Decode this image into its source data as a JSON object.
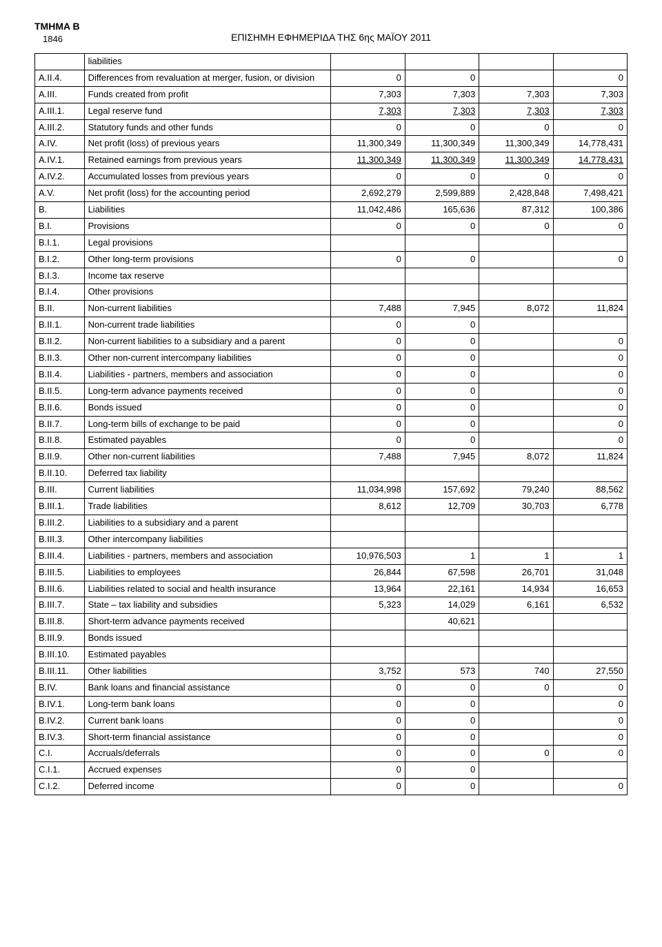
{
  "header": {
    "section_label": "TMHMA B",
    "page_number": "1846",
    "title": "ΕΠΙΣΗΜΗ ΕΦΗΜΕΡΙΔΑ ΤΗΣ 6ης ΜΑΪΟΥ 2011"
  },
  "table": {
    "columns": {
      "code_width": 60,
      "desc_width": 300,
      "val_width": 90
    },
    "rows": [
      {
        "code": "",
        "desc": "liabilities",
        "v": [
          "",
          "",
          "",
          ""
        ]
      },
      {
        "code": "A.II.4.",
        "desc": "Differences from revaluation at merger, fusion, or division",
        "v": [
          "0",
          "0",
          "",
          "0"
        ]
      },
      {
        "code": "A.III.",
        "desc": "Funds created from profit",
        "v": [
          "7,303",
          "7,303",
          "7,303",
          "7,303"
        ]
      },
      {
        "code": "A.III.1.",
        "desc": "Legal reserve fund",
        "v": [
          "7,303",
          "7,303",
          "7,303",
          "7,303"
        ],
        "underline": [
          true,
          true,
          true,
          true
        ]
      },
      {
        "code": "A.III.2.",
        "desc": "Statutory funds and other funds",
        "v": [
          "0",
          "0",
          "0",
          "0"
        ]
      },
      {
        "code": "A.IV.",
        "desc": "Net profit (loss) of previous years",
        "v": [
          "11,300,349",
          "11,300,349",
          "11,300,349",
          "14,778,431"
        ]
      },
      {
        "code": "A.IV.1.",
        "desc": "Retained earnings from previous years",
        "v": [
          "11,300,349",
          "11,300,349",
          "11,300,349",
          "14,778,431"
        ],
        "underline": [
          true,
          true,
          true,
          true
        ]
      },
      {
        "code": "A.IV.2.",
        "desc": "Accumulated losses from previous years",
        "v": [
          "0",
          "0",
          "0",
          "0"
        ]
      },
      {
        "code": "A.V.",
        "desc": "Net profit (loss) for the accounting period",
        "v": [
          "2,692,279",
          "2,599,889",
          "2,428,848",
          "7,498,421"
        ]
      },
      {
        "code": "B.",
        "desc": "Liabilities",
        "v": [
          "11,042,486",
          "165,636",
          "87,312",
          "100,386"
        ]
      },
      {
        "code": "B.I.",
        "desc": "Provisions",
        "v": [
          "0",
          "0",
          "0",
          "0"
        ]
      },
      {
        "code": "B.I.1.",
        "desc": "Legal provisions",
        "v": [
          "",
          "",
          "",
          ""
        ]
      },
      {
        "code": "B.I.2.",
        "desc": "Other long-term provisions",
        "v": [
          "0",
          "0",
          "",
          "0"
        ]
      },
      {
        "code": "B.I.3.",
        "desc": "Income tax reserve",
        "v": [
          "",
          "",
          "",
          ""
        ]
      },
      {
        "code": "B.I.4.",
        "desc": "Other provisions",
        "v": [
          "",
          "",
          "",
          ""
        ]
      },
      {
        "code": "B.II.",
        "desc": "Non-current liabilities",
        "v": [
          "7,488",
          "7,945",
          "8,072",
          "11,824"
        ]
      },
      {
        "code": "B.II.1.",
        "desc": "Non-current trade liabilities",
        "v": [
          "0",
          "0",
          "",
          ""
        ]
      },
      {
        "code": "B.II.2.",
        "desc": "Non-current liabilities to a subsidiary and a parent",
        "v": [
          "0",
          "0",
          "",
          "0"
        ]
      },
      {
        "code": "B.II.3.",
        "desc": "Other non-current intercompany liabilities",
        "v": [
          "0",
          "0",
          "",
          "0"
        ]
      },
      {
        "code": "B.II.4.",
        "desc": "Liabilities - partners, members and association",
        "v": [
          "0",
          "0",
          "",
          "0"
        ]
      },
      {
        "code": "B.II.5.",
        "desc": "Long-term advance payments received",
        "v": [
          "0",
          "0",
          "",
          "0"
        ]
      },
      {
        "code": "B.II.6.",
        "desc": "Bonds issued",
        "v": [
          "0",
          "0",
          "",
          "0"
        ]
      },
      {
        "code": "B.II.7.",
        "desc": "Long-term bills of exchange to be paid",
        "v": [
          "0",
          "0",
          "",
          "0"
        ]
      },
      {
        "code": "B.II.8.",
        "desc": "Estimated payables",
        "v": [
          "0",
          "0",
          "",
          "0"
        ]
      },
      {
        "code": "B.II.9.",
        "desc": "Other non-current liabilities",
        "v": [
          "7,488",
          "7,945",
          "8,072",
          "11,824"
        ]
      },
      {
        "code": "B.II.10.",
        "desc": "Deferred tax liability",
        "v": [
          "",
          "",
          "",
          ""
        ]
      },
      {
        "code": "B.III.",
        "desc": "Current liabilities",
        "v": [
          "11,034,998",
          "157,692",
          "79,240",
          "88,562"
        ]
      },
      {
        "code": "B.III.1.",
        "desc": "Trade liabilities",
        "v": [
          "8,612",
          "12,709",
          "30,703",
          "6,778"
        ]
      },
      {
        "code": "B.III.2.",
        "desc": "Liabilities to a subsidiary and a parent",
        "v": [
          "",
          "",
          "",
          ""
        ]
      },
      {
        "code": "B.III.3.",
        "desc": "Other intercompany liabilities",
        "v": [
          "",
          "",
          "",
          ""
        ]
      },
      {
        "code": "B.III.4.",
        "desc": "Liabilities - partners, members and association",
        "v": [
          "10,976,503",
          "1",
          "1",
          "1"
        ]
      },
      {
        "code": "B.III.5.",
        "desc": "Liabilities to employees",
        "v": [
          "26,844",
          "67,598",
          "26,701",
          "31,048"
        ]
      },
      {
        "code": "B.III.6.",
        "desc": "Liabilities related to social and health insurance",
        "v": [
          "13,964",
          "22,161",
          "14,934",
          "16,653"
        ]
      },
      {
        "code": "B.III.7.",
        "desc": "State – tax liability and subsidies",
        "v": [
          "5,323",
          "14,029",
          "6,161",
          "6,532"
        ]
      },
      {
        "code": "B.III.8.",
        "desc": "Short-term advance payments received",
        "v": [
          "",
          "40,621",
          "",
          ""
        ]
      },
      {
        "code": "B.III.9.",
        "desc": "Bonds issued",
        "v": [
          "",
          "",
          "",
          ""
        ]
      },
      {
        "code": "B.III.10.",
        "desc": "Estimated payables",
        "v": [
          "",
          "",
          "",
          ""
        ]
      },
      {
        "code": "B.III.11.",
        "desc": "Other liabilities",
        "v": [
          "3,752",
          "573",
          "740",
          "27,550"
        ]
      },
      {
        "code": "B.IV.",
        "desc": "Bank loans and financial assistance",
        "v": [
          "0",
          "0",
          "0",
          "0"
        ]
      },
      {
        "code": "B.IV.1.",
        "desc": "Long-term bank loans",
        "v": [
          "0",
          "0",
          "",
          "0"
        ]
      },
      {
        "code": "B.IV.2.",
        "desc": "Current bank loans",
        "v": [
          "0",
          "0",
          "",
          "0"
        ]
      },
      {
        "code": "B.IV.3.",
        "desc": "Short-term financial assistance",
        "v": [
          "0",
          "0",
          "",
          "0"
        ]
      },
      {
        "code": "C.I.",
        "desc": "Accruals/deferrals",
        "v": [
          "0",
          "0",
          "0",
          "0"
        ]
      },
      {
        "code": "C.I.1.",
        "desc": "Accrued expenses",
        "v": [
          "0",
          "0",
          "",
          ""
        ]
      },
      {
        "code": "C.I.2.",
        "desc": "Deferred income",
        "v": [
          "0",
          "0",
          "",
          "0"
        ]
      }
    ]
  }
}
